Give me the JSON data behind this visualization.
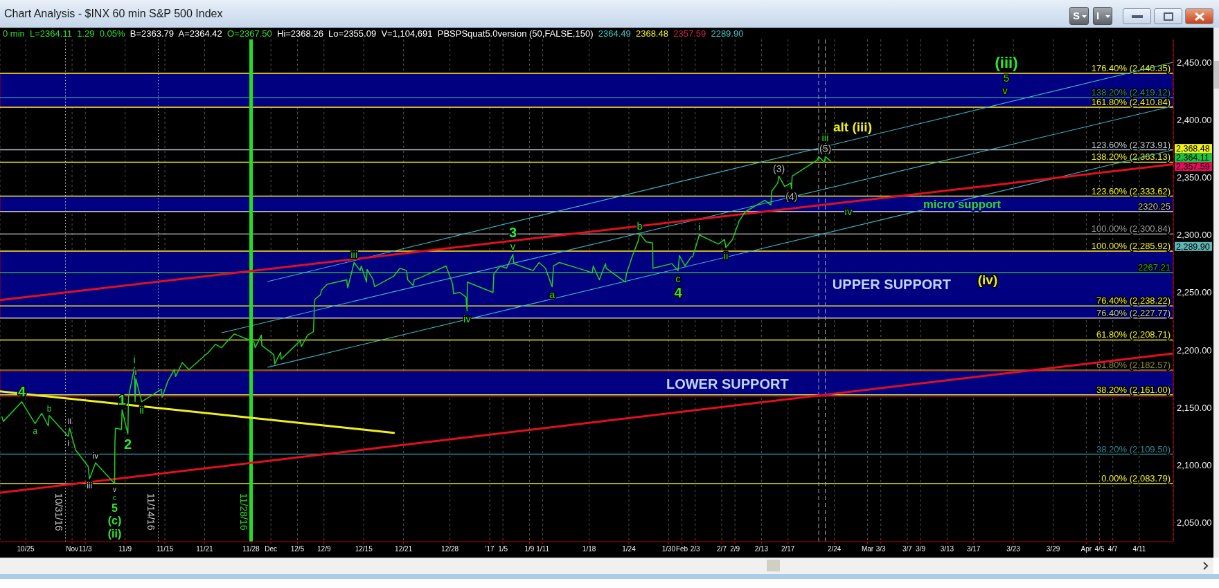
{
  "chart_data": {
    "type": "line",
    "title": "Chart Analysis - $INX 60 min S&P 500 Index",
    "subtitle": "0 min  L=2364.11  1.29  0.05%  B=2363.79  A=2364.42  O=2367.50  Hi=2368.26  Lo=2355.09  V=1,104,691  PBSPSquat5.0version (50,FALSE,150)  2364.49  2368.48  2357.59  2289.90",
    "xlim": [
      "2016-10-21T03:00",
      "2017-04-16T03:00"
    ],
    "xticks": [
      {
        "value": "2016-10-25",
        "label": "10/25"
      },
      {
        "value": "2016-11-01",
        "label": "Nov"
      },
      {
        "value": "2016-11-03",
        "label": "11/3"
      },
      {
        "value": "2016-11-09",
        "label": "11/9"
      },
      {
        "value": "2016-11-15",
        "label": "11/15"
      },
      {
        "value": "2016-11-21",
        "label": "11/21"
      },
      {
        "value": "2016-11-28",
        "label": "11/28"
      },
      {
        "value": "2016-12-01",
        "label": "Dec"
      },
      {
        "value": "2016-12-05",
        "label": "12/5"
      },
      {
        "value": "2016-12-09",
        "label": "12/9"
      },
      {
        "value": "2016-12-15",
        "label": "12/15"
      },
      {
        "value": "2016-12-21",
        "label": "12/21"
      },
      {
        "value": "2016-12-28",
        "label": "12/28"
      },
      {
        "value": "2017-01-03",
        "label": "'17"
      },
      {
        "value": "2017-01-05",
        "label": "1/5"
      },
      {
        "value": "2017-01-09",
        "label": "1/9"
      },
      {
        "value": "2017-01-11",
        "label": "1/11"
      },
      {
        "value": "2017-01-18",
        "label": "1/18"
      },
      {
        "value": "2017-01-24",
        "label": "1/24"
      },
      {
        "value": "2017-01-30",
        "label": "1/30"
      },
      {
        "value": "2017-02-01",
        "label": "Feb"
      },
      {
        "value": "2017-02-03",
        "label": "2/3"
      },
      {
        "value": "2017-02-07",
        "label": "2/7"
      },
      {
        "value": "2017-02-09",
        "label": "2/9"
      },
      {
        "value": "2017-02-13",
        "label": "2/13"
      },
      {
        "value": "2017-02-17",
        "label": "2/17"
      },
      {
        "value": "2017-02-24",
        "label": "2/24"
      },
      {
        "value": "2017-03-01",
        "label": "Mar"
      },
      {
        "value": "2017-03-03",
        "label": "3/3"
      },
      {
        "value": "2017-03-07",
        "label": "3/7"
      },
      {
        "value": "2017-03-09",
        "label": "3/9"
      },
      {
        "value": "2017-03-13",
        "label": "3/13"
      },
      {
        "value": "2017-03-17",
        "label": "3/17"
      },
      {
        "value": "2017-03-23",
        "label": "3/23"
      },
      {
        "value": "2017-03-29",
        "label": "3/29"
      },
      {
        "value": "2017-04-03",
        "label": "Apr"
      },
      {
        "value": "2017-04-05",
        "label": "4/5"
      },
      {
        "value": "2017-04-07",
        "label": "4/7"
      },
      {
        "value": "2017-04-11",
        "label": "4/11"
      }
    ],
    "ylim": [
      2033.5,
      2469.8
    ],
    "yticks": [
      {
        "value": 2050,
        "label": "2,050.00"
      },
      {
        "value": 2100,
        "label": "2,100.00"
      },
      {
        "value": 2150,
        "label": "2,150.00"
      },
      {
        "value": 2200,
        "label": "2,200.00"
      },
      {
        "value": 2250,
        "label": "2,250.00"
      },
      {
        "value": 2300,
        "label": "2,300.00"
      },
      {
        "value": 2350,
        "label": "2,350.00"
      },
      {
        "value": 2400,
        "label": "2,400.00"
      },
      {
        "value": 2450,
        "label": "2,450.00"
      }
    ],
    "grid": "x",
    "series": [
      {
        "color": "#22d022",
        "x": [
          "2016-10-21T10:00",
          "2016-10-21T15:00",
          "2016-10-24T10:00",
          "2016-10-24T15:00",
          "2016-10-26T10:00",
          "2016-10-27T10:00",
          "2016-10-28T10:00",
          "2016-10-28T13:00",
          "2016-10-31T10:00",
          "2016-10-31T15:00",
          "2016-11-01T13:00",
          "2016-11-03T10:00",
          "2016-11-03T15:00",
          "2016-11-04T13:00",
          "2016-11-07T10:00",
          "2016-11-07T11:00",
          "2016-11-07T13:00",
          "2016-11-08T11:00",
          "2016-11-08T13:00",
          "2016-11-09T10:00",
          "2016-11-09T12:00",
          "2016-11-10T10:00",
          "2016-11-10T12:00",
          "2016-11-10T15:00",
          "2016-11-11T12:00",
          "2016-11-14T11:00",
          "2016-11-14T14:00",
          "2016-11-15T11:00",
          "2016-11-16T10:00",
          "2016-11-16T15:00",
          "2016-11-17T15:00",
          "2016-11-18T15:00",
          "2016-11-21T14:00",
          "2016-11-22T15:00",
          "2016-11-23T13:00",
          "2016-11-25T11:00",
          "2016-11-28T10:00",
          "2016-11-28T15:00",
          "2016-11-29T13:00",
          "2016-11-29T15:00",
          "2016-12-01T10:00",
          "2016-12-01T14:00",
          "2016-12-02T11:00",
          "2016-12-02T13:00",
          "2016-12-05T10:00",
          "2016-12-05T14:00",
          "2016-12-06T13:00",
          "2016-12-07T10:00",
          "2016-12-07T13:00",
          "2016-12-07T15:00",
          "2016-12-08T11:00",
          "2016-12-08T15:00",
          "2016-12-09T11:00",
          "2016-12-12T10:00",
          "2016-12-12T14:00",
          "2016-12-13T10:00",
          "2016-12-13T13:00",
          "2016-12-14T11:00",
          "2016-12-14T15:00",
          "2016-12-15T10:00",
          "2016-12-15T12:00",
          "2016-12-16T10:00",
          "2016-12-16T15:00",
          "2016-12-19T12:00",
          "2016-12-20T11:00",
          "2016-12-21T11:00",
          "2016-12-21T15:00",
          "2016-12-22T11:00",
          "2016-12-22T15:00",
          "2016-12-23T14:00",
          "2016-12-27T10:00",
          "2016-12-27T13:00",
          "2016-12-28T10:00",
          "2016-12-28T13:00",
          "2016-12-29T12:00",
          "2016-12-30T10:00",
          "2016-12-30T14:00",
          "2016-12-30T15:00",
          "2017-01-03T12:00",
          "2017-01-03T15:00",
          "2017-01-04T14:00",
          "2017-01-05T13:00",
          "2017-01-06T12:00",
          "2017-01-06T15:00",
          "2017-01-09T13:00",
          "2017-01-10T11:00",
          "2017-01-11T10:00",
          "2017-01-12T10:00",
          "2017-01-12T15:00",
          "2017-01-13T12:00",
          "2017-01-17T12:00",
          "2017-01-18T11:00",
          "2017-01-18T15:00",
          "2017-01-19T13:00",
          "2017-01-20T11:00",
          "2017-01-20T14:00",
          "2017-01-23T11:00",
          "2017-01-23T15:00",
          "2017-01-24T13:00",
          "2017-01-25T10:00",
          "2017-01-25T15:00",
          "2017-01-26T14:00",
          "2017-01-27T14:00",
          "2017-01-27T15:00",
          "2017-01-30T12:00",
          "2017-01-31T10:00",
          "2017-01-31T15:00",
          "2017-02-01T11:00",
          "2017-02-02T10:00",
          "2017-02-02T15:00",
          "2017-02-03T10:00",
          "2017-02-03T15:00",
          "2017-02-06T12:00",
          "2017-02-07T10:00",
          "2017-02-07T15:00",
          "2017-02-08T15:00",
          "2017-02-09T11:00",
          "2017-02-09T15:00",
          "2017-02-10T13:00",
          "2017-02-13T12:00",
          "2017-02-14T10:00",
          "2017-02-14T13:00",
          "2017-02-15T11:00",
          "2017-02-15T15:00",
          "2017-02-16T12:00",
          "2017-02-17T10:00",
          "2017-02-17T13:00",
          "2017-02-17T15:00",
          "2017-02-21T10:00",
          "2017-02-21T15:00",
          "2017-02-22T12:00",
          "2017-02-22T15:00",
          "2017-02-23T11:00"
        ],
        "values": [
          2142,
          2138,
          2155,
          2153,
          2136,
          2145,
          2134,
          2143,
          2125,
          2132,
          2113,
          2099,
          2088,
          2102,
          2084,
          2120,
          2132,
          2131,
          2148,
          2127,
          2159,
          2185,
          2155,
          2175,
          2155,
          2166,
          2159,
          2173,
          2183,
          2177,
          2189,
          2183,
          2198,
          2205,
          2202,
          2214,
          2207,
          2202,
          2213,
          2204,
          2196,
          2188,
          2198,
          2192,
          2208,
          2203,
          2213,
          2216,
          2236,
          2244,
          2248,
          2252,
          2257,
          2261,
          2254,
          2273,
          2276,
          2269,
          2273,
          2259,
          2270,
          2261,
          2255,
          2264,
          2271,
          2269,
          2261,
          2256,
          2261,
          2263,
          2273,
          2271,
          2257,
          2249,
          2250,
          2246,
          2234,
          2259,
          2250,
          2266,
          2273,
          2271,
          2283,
          2275,
          2269,
          2276,
          2271,
          2255,
          2273,
          2276,
          2269,
          2267,
          2273,
          2261,
          2275,
          2271,
          2259,
          2266,
          2282,
          2295,
          2301,
          2294,
          2293,
          2271,
          2275,
          2269,
          2282,
          2273,
          2281,
          2281,
          2296,
          2300,
          2292,
          2296,
          2289,
          2296,
          2309,
          2312,
          2320,
          2330,
          2326,
          2338,
          2345,
          2351,
          2342,
          2345,
          2340,
          2351,
          2365,
          2368,
          2363,
          2368,
          2364
        ]
      },
      {
        "color": "#e01020",
        "x": [
          "2016-10-21T03:00",
          "2017-04-16T03:00"
        ],
        "values": [
          2243.4,
          2361.3
        ]
      },
      {
        "color": "#e01020",
        "x": [
          "2016-10-21T03:00",
          "2017-04-16T03:00"
        ],
        "values": [
          2076,
          2197
        ]
      },
      {
        "color": "#f0f020",
        "x": [
          "2016-10-21T03:00",
          "2016-12-19T13:00"
        ],
        "values": [
          2164,
          2128
        ]
      },
      {
        "color": "#3fb6c8",
        "x": [
          "2016-11-30T12:00",
          "2017-04-16T03:00"
        ],
        "values": [
          2259.5,
          2450
        ]
      },
      {
        "color": "#3fb6c8",
        "x": [
          "2016-11-23T14:00",
          "2017-04-16T03:00"
        ],
        "values": [
          2215,
          2412
        ]
      },
      {
        "color": "#3fb6c8",
        "x": [
          "2016-11-30T13:00",
          "2017-04-16T03:00"
        ],
        "values": [
          2185,
          2374
        ]
      }
    ],
    "ref_lines": [
      {
        "axis": "y",
        "value": 2440.35,
        "label": "176.40% (2,440.35)",
        "color": "#f0f020"
      },
      {
        "axis": "y",
        "value": 2419.12,
        "label": "138.20% (2,419.12)",
        "color": "#2e8a96"
      },
      {
        "axis": "y",
        "value": 2410.84,
        "label": "161.80% (2,410.84)",
        "color": "#f0f020"
      },
      {
        "axis": "y",
        "value": 2373.91,
        "label": "123.60% (2,373.91)",
        "color": "#c0c8d0"
      },
      {
        "axis": "y",
        "value": 2363.13,
        "label": "138.20% (2,363.13)",
        "color": "#f0f020"
      },
      {
        "axis": "y",
        "value": 2333.62,
        "label": "123.60% (2,333.62)",
        "color": "#f0f020"
      },
      {
        "axis": "y",
        "value": 2320.25,
        "label": "2320.25",
        "color": "#b8c0c8"
      },
      {
        "axis": "y",
        "value": 2300.84,
        "label": "100.00% (2,300.84)",
        "color": "#9a9a9a"
      },
      {
        "axis": "y",
        "value": 2285.92,
        "label": "100.00% (2,285.92)",
        "color": "#f0f020"
      },
      {
        "axis": "y",
        "value": 2267.21,
        "label": "2267.21",
        "color": "#2aa83a"
      },
      {
        "axis": "y",
        "value": 2238.22,
        "label": "76.40% (2,238.22)",
        "color": "#f0f020"
      },
      {
        "axis": "y",
        "value": 2227.77,
        "label": "76.40% (2,227.77)",
        "color": "#b8c4dc"
      },
      {
        "axis": "y",
        "value": 2208.71,
        "label": "61.80% (2,208.71)",
        "color": "#f0f020"
      },
      {
        "axis": "y",
        "value": 2182.57,
        "label": "61.80% (2,182.57)",
        "color": "#8c8c34"
      },
      {
        "axis": "y",
        "value": 2161,
        "label": "38.20% (2,161.00)",
        "color": "#f0f020"
      },
      {
        "axis": "y",
        "value": 2109.5,
        "label": "38.20% (2,109.50)",
        "color": "#2e8a96"
      },
      {
        "axis": "y",
        "value": 2083.79,
        "label": "0.00% (2,083.79)",
        "color": "#f0f020"
      },
      {
        "axis": "x",
        "value": "2016-10-31",
        "label": "10/31/16",
        "color": "#c8c8c8",
        "line_style": "dotted"
      },
      {
        "axis": "x",
        "value": "2016-11-14",
        "label": "11/14/16",
        "color": "#c8c8c8",
        "line_style": "dotted"
      },
      {
        "axis": "x",
        "value": "2016-11-28",
        "label": "11/28/16",
        "color": "#22dd22",
        "line_style": "solid"
      },
      {
        "axis": "x",
        "value": "2017-02-21T15:00",
        "color": "#a0a0a0",
        "line_style": "dashed"
      },
      {
        "axis": "x",
        "value": "2017-02-22T15:00",
        "color": "#a0a0a0",
        "line_style": "dashed"
      }
    ],
    "bands": [
      {
        "axis": "y",
        "from": 2410.84,
        "to": 2440.35,
        "color": "#000080"
      },
      {
        "axis": "y",
        "from": 2320.25,
        "to": 2333.62,
        "label": "micro support",
        "color": "#000080"
      },
      {
        "axis": "y",
        "from": 2227.77,
        "to": 2285.92,
        "label": "UPPER SUPPORT",
        "color": "#000080"
      },
      {
        "axis": "y",
        "from": 2159.5,
        "to": 2181.5,
        "label": "LOWER SUPPORT",
        "color": "#000080"
      }
    ],
    "annotations": [
      {
        "text": "4",
        "x": "2016-10-24T10:00",
        "y": 2155
      },
      {
        "text": "a",
        "x": "2016-10-26T10:00",
        "y": 2136
      },
      {
        "text": "b",
        "x": "2016-10-28T13:00",
        "y": 2143
      },
      {
        "text": "i",
        "x": "2016-10-31T10:00",
        "y": 2125
      },
      {
        "text": "ii",
        "x": "2016-10-31T15:00",
        "y": 2132
      },
      {
        "text": "iii",
        "x": "2016-11-03T15:00",
        "y": 2088
      },
      {
        "text": "iv",
        "x": "2016-11-04T13:00",
        "y": 2102
      },
      {
        "text": "v",
        "x": "2016-11-07T10:00",
        "y": 2084
      },
      {
        "text": "c",
        "x": "2016-11-07T10:00",
        "y": 2084
      },
      {
        "text": "5",
        "x": "2016-11-07T10:00",
        "y": 2084
      },
      {
        "text": "(c)",
        "x": "2016-11-07T10:00",
        "y": 2084
      },
      {
        "text": "1",
        "x": "2016-11-08T13:00",
        "y": 2148
      },
      {
        "text": "2",
        "x": "2016-11-09T10:00",
        "y": 2127
      },
      {
        "text": "i",
        "x": "2016-11-10T10:00",
        "y": 2185
      },
      {
        "text": "i",
        "x": "2016-11-10T15:00",
        "y": 2175
      },
      {
        "text": "ii",
        "x": "2016-11-11T12:00",
        "y": 2155
      },
      {
        "text": "iii",
        "x": "2016-12-13T13:00",
        "y": 2276
      },
      {
        "text": "iv",
        "x": "2016-12-30T14:00",
        "y": 2234
      },
      {
        "text": "3",
        "x": "2017-01-06T12:00",
        "y": 2283
      },
      {
        "text": "v",
        "x": "2017-01-06T12:00",
        "y": 2283
      },
      {
        "text": "a",
        "x": "2017-01-12T10:00",
        "y": 2255
      },
      {
        "text": "b",
        "x": "2017-01-25T15:00",
        "y": 2301
      },
      {
        "text": "c",
        "x": "2017-01-31T10:00",
        "y": 2269
      },
      {
        "text": "4",
        "x": "2017-01-31T10:00",
        "y": 2269
      },
      {
        "text": "i",
        "x": "2017-02-03T15:00",
        "y": 2300
      },
      {
        "text": "ii",
        "x": "2017-02-07T15:00",
        "y": 2289
      },
      {
        "text": "(3)",
        "x": "2017-02-15T15:00",
        "y": 2351
      },
      {
        "text": "(4)",
        "x": "2017-02-17T13:00",
        "y": 2340
      },
      {
        "text": "iii",
        "x": "2017-02-22T15:00",
        "y": 2368
      },
      {
        "text": "(5)",
        "x": "2017-02-22T15:00",
        "y": 2368
      },
      "alt (iii)",
      "(iii)",
      "5",
      "v",
      "iv",
      "(iv)",
      "(ii)",
      "2,368.48",
      "2,364.11",
      "2,357.59",
      "2,289.90",
      "S",
      "I"
    ]
  }
}
